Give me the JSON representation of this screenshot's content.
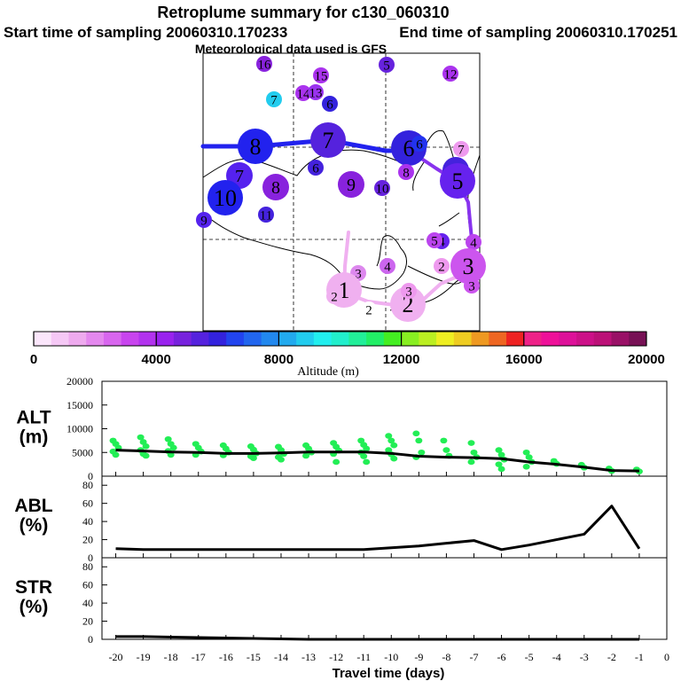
{
  "header": {
    "title": "Retroplume summary for c130_060310",
    "start": "Start time of sampling 20060310.170233",
    "end": "End time of sampling 20060310.170251",
    "met": "Meteorological data used is GFS"
  },
  "map": {
    "track_colors": [
      "#2222ee",
      "#8833ee",
      "#f0b0f0"
    ],
    "markers": [
      {
        "label": "16",
        "size": "s",
        "color": "#8822dd"
      },
      {
        "label": "15",
        "size": "s",
        "color": "#aa33ee"
      },
      {
        "label": "5",
        "size": "s",
        "color": "#6622dd"
      },
      {
        "label": "12",
        "size": "s",
        "color": "#aa33ee"
      },
      {
        "label": "7",
        "size": "s",
        "color": "#22ccee"
      },
      {
        "label": "14",
        "size": "s",
        "color": "#aa33ee"
      },
      {
        "label": "13",
        "size": "s",
        "color": "#9933ee"
      },
      {
        "label": "6",
        "size": "s",
        "color": "#3322dd"
      },
      {
        "label": "8",
        "size": "l",
        "color": "#2222ee"
      },
      {
        "label": "7",
        "size": "l",
        "color": "#5522dd"
      },
      {
        "label": "6",
        "size": "l",
        "color": "#3322dd"
      },
      {
        "label": "6",
        "size": "s",
        "color": "#2233ee"
      },
      {
        "label": "7",
        "size": "s",
        "color": "#ee99ee"
      },
      {
        "label": "7",
        "size": "m",
        "color": "#5522ee"
      },
      {
        "label": "6",
        "size": "s",
        "color": "#4422dd"
      },
      {
        "label": "9",
        "size": "m",
        "color": "#8822dd"
      },
      {
        "label": "8",
        "size": "m",
        "color": "#8822dd"
      },
      {
        "label": "10",
        "size": "s",
        "color": "#6622dd"
      },
      {
        "label": "8",
        "size": "s",
        "color": "#aa33ee"
      },
      {
        "label": "10",
        "size": "l",
        "color": "#2222ee"
      },
      {
        "label": "9",
        "size": "s",
        "color": "#5522ee"
      },
      {
        "label": "11",
        "size": "s",
        "color": "#4422dd"
      },
      {
        "label": "6",
        "size": "m",
        "color": "#4422dd"
      },
      {
        "label": "5",
        "size": "l",
        "color": "#6622ee"
      },
      {
        "label": "4",
        "size": "s",
        "color": "#6622ee"
      },
      {
        "label": "5",
        "size": "s",
        "color": "#bb44ee"
      },
      {
        "label": "4",
        "size": "s",
        "color": "#bb44ee"
      },
      {
        "label": "3",
        "size": "l",
        "color": "#cc55ee"
      },
      {
        "label": "3",
        "size": "s",
        "color": "#cc55ee"
      },
      {
        "label": "3",
        "size": "s",
        "color": "#dd88ee"
      },
      {
        "label": "4",
        "size": "s",
        "color": "#cc66ee"
      },
      {
        "label": "1",
        "size": "l",
        "color": "#f0b0f0"
      },
      {
        "label": "2",
        "size": "s",
        "color": "#f0b0f0"
      },
      {
        "label": "2",
        "size": "s",
        "color": "#ffffff"
      },
      {
        "label": "2",
        "size": "l",
        "color": "#f0b0f0"
      },
      {
        "label": "3",
        "size": "s",
        "color": "#ee99ee"
      },
      {
        "label": "2",
        "size": "s",
        "color": "#ee99ee"
      }
    ]
  },
  "colorbar": {
    "ticks": [
      "0",
      "4000",
      "8000",
      "12000",
      "16000",
      "20000"
    ],
    "label": "Altitude (m)",
    "colors": [
      "#fbe6fb",
      "#f5c8f5",
      "#eeaaee",
      "#e488ee",
      "#d866ee",
      "#c844ee",
      "#b233ee",
      "#9922ee",
      "#7722dd",
      "#5522dd",
      "#3322dd",
      "#2244ee",
      "#2266ee",
      "#2288ee",
      "#22aaee",
      "#22ccee",
      "#22eeee",
      "#22eecc",
      "#22ee99",
      "#22ee66",
      "#44ee22",
      "#88ee22",
      "#bbee22",
      "#eeee22",
      "#eecc22",
      "#ee9922",
      "#ee6622",
      "#ee2222",
      "#ee2288",
      "#ee1199",
      "#dd1199",
      "#cc1188",
      "#bb1177",
      "#991166",
      "#771155"
    ]
  },
  "chart_data": [
    {
      "type": "line",
      "title": "ALT (m)",
      "ylabel": "ALT\n(m)",
      "ylim": [
        0,
        20000
      ],
      "yticks": [
        "0",
        "5000",
        "10000",
        "15000",
        "20000"
      ],
      "x": [
        -20,
        -19,
        -18,
        -17,
        -16,
        -15,
        -14,
        -13,
        -12,
        -11,
        -10,
        -9,
        -8,
        -7,
        -6,
        -5,
        -4,
        -3,
        -2,
        -1
      ],
      "values": [
        5500,
        5300,
        5100,
        5000,
        4800,
        4800,
        4900,
        5100,
        5100,
        5100,
        4800,
        4200,
        4000,
        3900,
        3700,
        3000,
        2500,
        1900,
        1200,
        1100
      ],
      "scatter_color": "#22ee55",
      "scatter": {
        "-20": [
          7500,
          6800,
          6000,
          5200,
          4500
        ],
        "-19": [
          8200,
          7200,
          6300,
          5500,
          4700,
          4300
        ],
        "-18": [
          7800,
          6800,
          6000,
          5300,
          4500
        ],
        "-17": [
          6800,
          6000,
          5200,
          4500
        ],
        "-16": [
          6500,
          5800,
          5000,
          4400
        ],
        "-15": [
          6300,
          5600,
          4800,
          4200,
          3800
        ],
        "-14": [
          6200,
          5500,
          4700,
          4000,
          3500
        ],
        "-13": [
          6500,
          5800,
          5000,
          4300
        ],
        "-12": [
          7000,
          6200,
          5400,
          4700,
          3000
        ],
        "-11": [
          7500,
          6600,
          5800,
          5000,
          4200,
          3000
        ],
        "-10": [
          8500,
          7500,
          6500,
          5500,
          4600,
          3700
        ],
        "-9": [
          9000,
          7500,
          5000,
          4000
        ],
        "-8": [
          7500,
          5500,
          4300
        ],
        "-7": [
          7000,
          5000,
          4000,
          3000
        ],
        "-6": [
          5500,
          4500,
          3500,
          2500,
          1500
        ],
        "-5": [
          5000,
          4000,
          3000,
          2000
        ],
        "-4": [
          3200,
          2600
        ],
        "-3": [
          2400,
          1800
        ],
        "-2": [
          1600,
          1100
        ],
        "-1": [
          1400,
          1000
        ]
      }
    },
    {
      "type": "line",
      "title": "ABL (%)",
      "ylabel": "ABL\n(%)",
      "ylim": [
        0,
        90
      ],
      "yticks": [
        "0",
        "20",
        "40",
        "60",
        "80"
      ],
      "x": [
        -20,
        -19,
        -18,
        -17,
        -16,
        -15,
        -14,
        -13,
        -12,
        -11,
        -10,
        -9,
        -8,
        -7,
        -6,
        -5,
        -4,
        -3,
        -2,
        -1
      ],
      "values": [
        10,
        9,
        9,
        9,
        9,
        9,
        9,
        9,
        9,
        9,
        11,
        13,
        16,
        19,
        9,
        14,
        20,
        26,
        57,
        10
      ]
    },
    {
      "type": "line",
      "title": "STR (%)",
      "ylabel": "STR\n(%)",
      "ylim": [
        0,
        90
      ],
      "yticks": [
        "0",
        "20",
        "40",
        "60",
        "80"
      ],
      "x": [
        -20,
        -19,
        -18,
        -17,
        -16,
        -15,
        -14,
        -13,
        -12,
        -11,
        -10,
        -9,
        -8,
        -7,
        -6,
        -5,
        -4,
        -3,
        -2,
        -1
      ],
      "values": [
        3,
        3,
        2.5,
        2,
        1.5,
        1,
        0.5,
        0,
        0,
        0,
        0,
        0,
        0,
        0,
        0,
        0,
        0,
        0,
        0,
        0
      ]
    }
  ],
  "xaxis": {
    "label": "Travel time (days)",
    "ticks": [
      "-20",
      "-19",
      "-18",
      "-17",
      "-16",
      "-15",
      "-14",
      "-13",
      "-12",
      "-11",
      "-10",
      "-9",
      "-8",
      "-7",
      "-6",
      "-5",
      "-4",
      "-3",
      "-2",
      "-1",
      "0"
    ]
  }
}
